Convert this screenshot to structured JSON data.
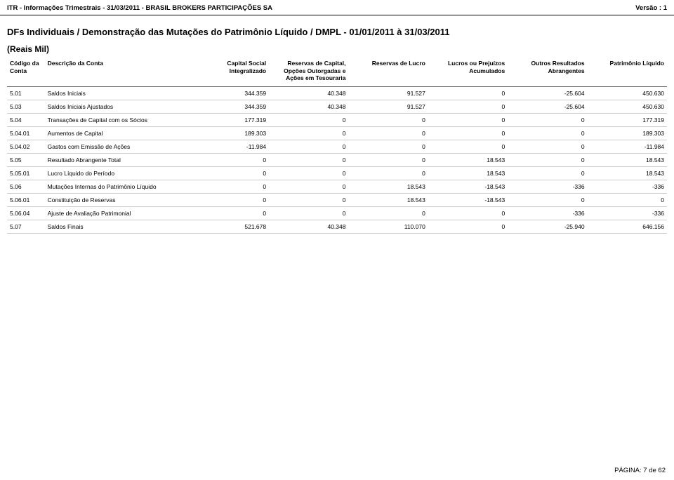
{
  "header": {
    "left": "ITR - Informações Trimestrais - 31/03/2011 - BRASIL BROKERS PARTICIPAÇÕES SA",
    "right": "Versão : 1"
  },
  "section_title": "DFs Individuais / Demonstração das Mutações do Patrimônio Líquido / DMPL - 01/01/2011 à 31/03/2011",
  "subtitle": "(Reais Mil)",
  "columns": [
    {
      "h1": "Código da",
      "h2": "Conta",
      "align": "left"
    },
    {
      "h1": "Descrição da Conta",
      "h2": "",
      "align": "left"
    },
    {
      "h1": "Capital Social",
      "h2": "Integralizado",
      "align": "right"
    },
    {
      "h1": "Reservas de Capital,",
      "h2": "Opções Outorgadas e",
      "h3": "Ações em Tesouraria",
      "align": "right"
    },
    {
      "h1": "Reservas de Lucro",
      "h2": "",
      "align": "right"
    },
    {
      "h1": "Lucros ou Prejuízos",
      "h2": "Acumulados",
      "align": "right"
    },
    {
      "h1": "Outros Resultados",
      "h2": "Abrangentes",
      "align": "right"
    },
    {
      "h1": "Patrimônio Líquido",
      "h2": "",
      "align": "right"
    }
  ],
  "rows": [
    {
      "code": "5.01",
      "desc": "Saldos Iniciais",
      "c1": "344.359",
      "c2": "40.348",
      "c3": "91.527",
      "c4": "0",
      "c5": "-25.604",
      "c6": "450.630"
    },
    {
      "code": "5.03",
      "desc": "Saldos Iniciais Ajustados",
      "c1": "344.359",
      "c2": "40.348",
      "c3": "91.527",
      "c4": "0",
      "c5": "-25.604",
      "c6": "450.630"
    },
    {
      "code": "5.04",
      "desc": "Transações de Capital com os Sócios",
      "c1": "177.319",
      "c2": "0",
      "c3": "0",
      "c4": "0",
      "c5": "0",
      "c6": "177.319"
    },
    {
      "code": "5.04.01",
      "desc": "Aumentos de Capital",
      "c1": "189.303",
      "c2": "0",
      "c3": "0",
      "c4": "0",
      "c5": "0",
      "c6": "189.303"
    },
    {
      "code": "5.04.02",
      "desc": "Gastos com Emissão de Ações",
      "c1": "-11.984",
      "c2": "0",
      "c3": "0",
      "c4": "0",
      "c5": "0",
      "c6": "-11.984"
    },
    {
      "code": "5.05",
      "desc": "Resultado Abrangente Total",
      "c1": "0",
      "c2": "0",
      "c3": "0",
      "c4": "18.543",
      "c5": "0",
      "c6": "18.543"
    },
    {
      "code": "5.05.01",
      "desc": "Lucro Líquido do Período",
      "c1": "0",
      "c2": "0",
      "c3": "0",
      "c4": "18.543",
      "c5": "0",
      "c6": "18.543"
    },
    {
      "code": "5.06",
      "desc": "Mutações Internas do Patrimônio Líquido",
      "c1": "0",
      "c2": "0",
      "c3": "18.543",
      "c4": "-18.543",
      "c5": "-336",
      "c6": "-336"
    },
    {
      "code": "5.06.01",
      "desc": "Constituição de Reservas",
      "c1": "0",
      "c2": "0",
      "c3": "18.543",
      "c4": "-18.543",
      "c5": "0",
      "c6": "0"
    },
    {
      "code": "5.06.04",
      "desc": "Ajuste de Avaliação Patrimonial",
      "c1": "0",
      "c2": "0",
      "c3": "0",
      "c4": "0",
      "c5": "-336",
      "c6": "-336"
    },
    {
      "code": "5.07",
      "desc": "Saldos Finais",
      "c1": "521.678",
      "c2": "40.348",
      "c3": "110.070",
      "c4": "0",
      "c5": "-25.940",
      "c6": "646.156"
    }
  ],
  "footer": "PÁGINA: 7 de 62",
  "style": {
    "background": "#ffffff",
    "text_color": "#000000",
    "header_border": "#000000",
    "row_border": "#cccccc",
    "thead_border": "#666666",
    "header_fontsize": 9.5,
    "title_fontsize": 13,
    "subtitle_fontsize": 12,
    "table_fontsize": 8.5,
    "footer_fontsize": 9.5
  }
}
